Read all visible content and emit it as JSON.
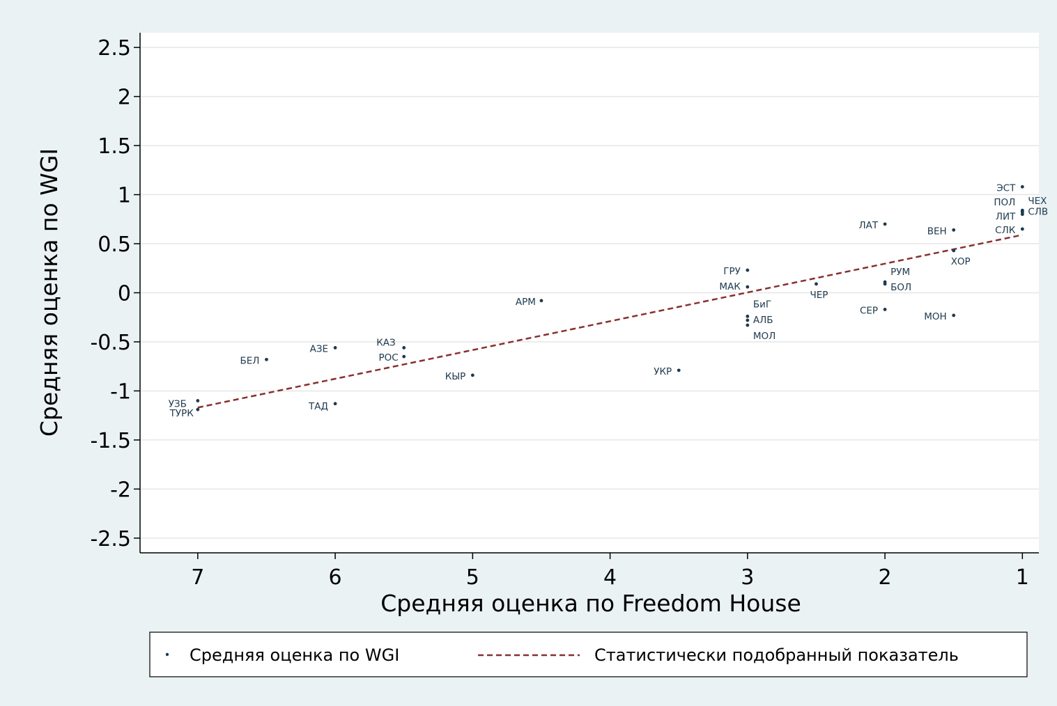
{
  "chart_data": {
    "type": "scatter",
    "xlabel": "Средняя оценка по Freedom House",
    "ylabel": "Средняя оценка по WGI",
    "xlim": [
      7.42,
      0.88
    ],
    "ylim": [
      -2.65,
      2.65
    ],
    "x_axis_reversed": true,
    "x_ticks": [
      7,
      6,
      5,
      4,
      3,
      2,
      1
    ],
    "y_ticks": [
      2.5,
      2,
      1.5,
      1,
      0.5,
      0,
      -0.5,
      -1,
      -1.5,
      -2,
      -2.5
    ],
    "y_tick_labels": [
      "2.5",
      "2",
      "1.5",
      "1",
      "0.5",
      "0",
      "-0.5",
      "-1",
      "-1.5",
      "-2",
      "-2.5"
    ],
    "grid": true,
    "legend_position": "bottom",
    "series": [
      {
        "name": "Средняя оценка по WGI",
        "kind": "scatter",
        "color": "#1a3a52",
        "points": [
          {
            "label": "УЗБ",
            "x": 7.0,
            "y": -1.1
          },
          {
            "label": "ТУРК",
            "x": 7.0,
            "y": -1.19
          },
          {
            "label": "БЕЛ",
            "x": 6.5,
            "y": -0.68
          },
          {
            "label": "АЗЕ",
            "x": 6.0,
            "y": -0.56
          },
          {
            "label": "ТАД",
            "x": 6.0,
            "y": -1.13
          },
          {
            "label": "КАЗ",
            "x": 5.5,
            "y": -0.56
          },
          {
            "label": "РОС",
            "x": 5.5,
            "y": -0.65
          },
          {
            "label": "КЫР",
            "x": 5.0,
            "y": -0.84
          },
          {
            "label": "АРМ",
            "x": 4.5,
            "y": -0.08
          },
          {
            "label": "УКР",
            "x": 3.5,
            "y": -0.79
          },
          {
            "label": "ГРУ",
            "x": 3.0,
            "y": 0.23
          },
          {
            "label": "МАК",
            "x": 3.0,
            "y": 0.06
          },
          {
            "label": "БиГ",
            "x": 3.0,
            "y": -0.24
          },
          {
            "label": "АЛБ",
            "x": 3.0,
            "y": -0.28
          },
          {
            "label": "МОЛ",
            "x": 3.0,
            "y": -0.33
          },
          {
            "label": "ЧЕР",
            "x": 2.5,
            "y": 0.09
          },
          {
            "label": "ЛАТ",
            "x": 2.0,
            "y": 0.7
          },
          {
            "label": "РУМ",
            "x": 2.0,
            "y": 0.11
          },
          {
            "label": "БОЛ",
            "x": 2.0,
            "y": 0.09
          },
          {
            "label": "СЕР",
            "x": 2.0,
            "y": -0.17
          },
          {
            "label": "ВЕН",
            "x": 1.5,
            "y": 0.64
          },
          {
            "label": "ХОР",
            "x": 1.5,
            "y": 0.43
          },
          {
            "label": "МОН",
            "x": 1.5,
            "y": -0.23
          },
          {
            "label": "ЭСТ",
            "x": 1.0,
            "y": 1.08
          },
          {
            "label": "ПОЛ",
            "x": 1.0,
            "y": 0.84
          },
          {
            "label": "ЧЕХ",
            "x": 1.0,
            "y": 0.82
          },
          {
            "label": "ЛИТ",
            "x": 1.0,
            "y": 0.8
          },
          {
            "label": "СЛВ",
            "x": 1.0,
            "y": 0.83
          },
          {
            "label": "СЛК",
            "x": 1.0,
            "y": 0.65
          }
        ]
      },
      {
        "name": "Статистически подобранный показатель",
        "kind": "line",
        "style": "dashed",
        "color": "#8b2e2e",
        "points": [
          {
            "x": 7.0,
            "y": -1.17
          },
          {
            "x": 1.0,
            "y": 0.59
          }
        ]
      }
    ]
  }
}
